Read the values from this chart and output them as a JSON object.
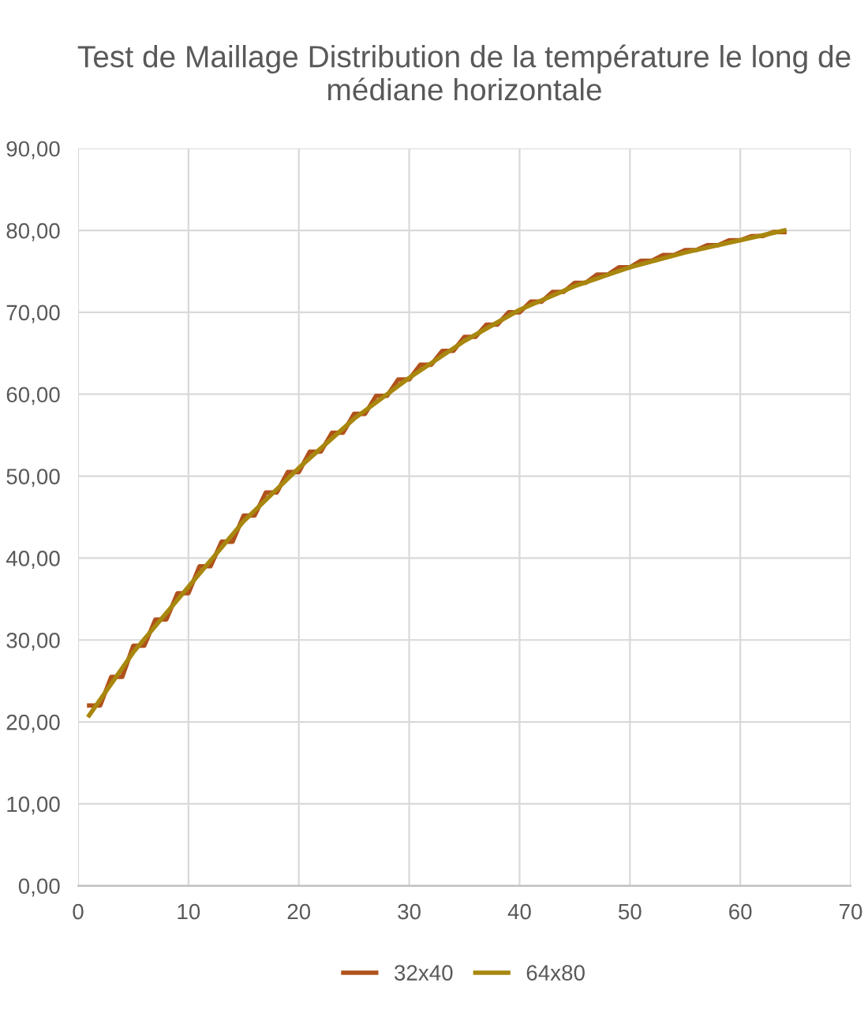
{
  "chart_data": {
    "type": "line",
    "title": "Test de Maillage Distribution de la température le long de\nmédiane horizontale",
    "xlim": [
      0,
      70
    ],
    "xticks": [
      0,
      10,
      20,
      30,
      40,
      50,
      60,
      70
    ],
    "ylim": [
      0,
      90
    ],
    "yticks": [
      {
        "value": 0,
        "label": "0,00"
      },
      {
        "value": 10,
        "label": "10,00"
      },
      {
        "value": 20,
        "label": "20,00"
      },
      {
        "value": 30,
        "label": "30,00"
      },
      {
        "value": 40,
        "label": "40,00"
      },
      {
        "value": 50,
        "label": "50,00"
      },
      {
        "value": 60,
        "label": "60,00"
      },
      {
        "value": 70,
        "label": "70,00"
      },
      {
        "value": 80,
        "label": "80,00"
      },
      {
        "value": 90,
        "label": "90,00"
      }
    ],
    "grid": true,
    "legend": "bottom",
    "marker": "none",
    "line_style": "solid",
    "series": [
      {
        "name": "32x40",
        "color": "#b0521c",
        "x": [
          1,
          2,
          3,
          4,
          5,
          6,
          7,
          8,
          9,
          10,
          11,
          12,
          13,
          14,
          15,
          16,
          17,
          18,
          19,
          20,
          21,
          22,
          23,
          24,
          25,
          26,
          27,
          28,
          29,
          30,
          31,
          32,
          33,
          34,
          35,
          36,
          37,
          38,
          39,
          40,
          41,
          42,
          43,
          44,
          45,
          46,
          47,
          48,
          49,
          50,
          51,
          52,
          53,
          54,
          55,
          56,
          57,
          58,
          59,
          60,
          61,
          62,
          63,
          64
        ],
        "values": [
          22,
          22,
          25.5,
          25.5,
          29.3,
          29.3,
          32.5,
          32.5,
          35.7,
          35.7,
          39,
          39,
          42,
          42,
          45.2,
          45.2,
          48,
          48,
          50.5,
          50.5,
          53,
          53,
          55.3,
          55.3,
          57.6,
          57.6,
          59.8,
          59.8,
          61.8,
          61.8,
          63.6,
          63.6,
          65.3,
          65.3,
          67,
          67,
          68.5,
          68.5,
          70,
          70,
          71.3,
          71.3,
          72.5,
          72.5,
          73.6,
          73.6,
          74.6,
          74.6,
          75.5,
          75.5,
          76.3,
          76.3,
          77,
          77,
          77.6,
          77.6,
          78.2,
          78.2,
          78.8,
          78.8,
          79.3,
          79.3,
          79.8,
          79.8
        ]
      },
      {
        "name": "64x80",
        "color": "#a8870e",
        "x": [
          1,
          5,
          10,
          15,
          20,
          25,
          30,
          35,
          40,
          45,
          50,
          55,
          60,
          64
        ],
        "values": [
          20.8,
          28.5,
          36.5,
          44.5,
          51,
          57,
          62,
          66.5,
          70.3,
          73.2,
          75.5,
          77.3,
          78.8,
          80
        ]
      }
    ]
  }
}
